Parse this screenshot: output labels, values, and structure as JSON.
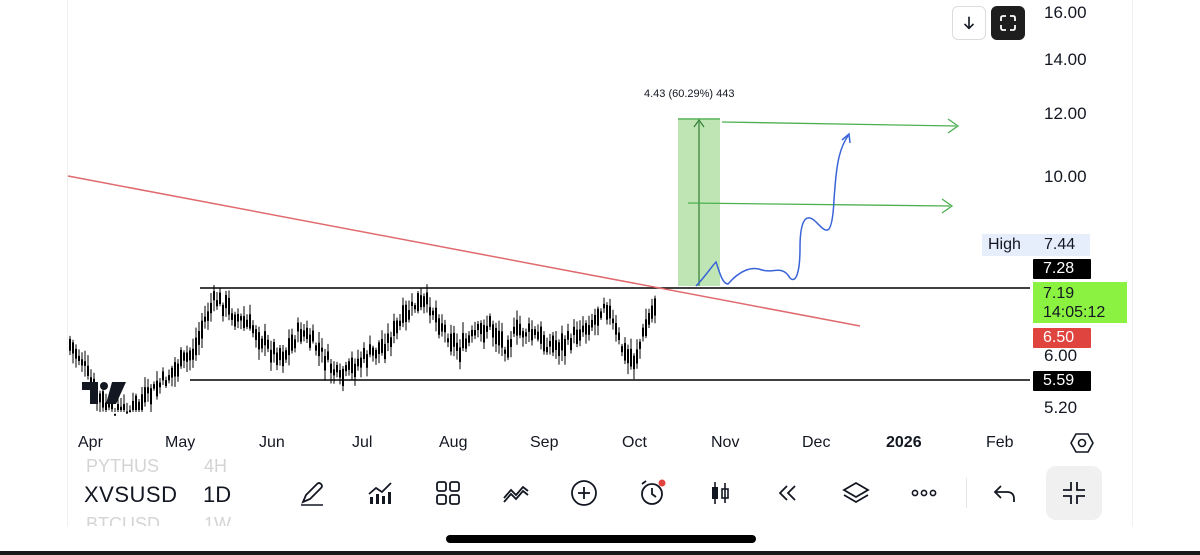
{
  "chart": {
    "symbol": "XVSUSD",
    "interval": "1D",
    "ghost_symbols": [
      "PYTHUS",
      "BTCUSD"
    ],
    "ghost_intervals": [
      "4H",
      "1W"
    ],
    "price_axis": [
      "16.00",
      "14.00",
      "12.00",
      "10.00",
      "6.00",
      "5.20"
    ],
    "x_axis": [
      "Apr",
      "May",
      "Jun",
      "Jul",
      "Aug",
      "Sep",
      "Oct",
      "Nov",
      "Dec",
      "2026",
      "Feb"
    ],
    "high_label": "High",
    "high_value": "7.44",
    "resistance_value": "7.28",
    "last_price": "7.19",
    "countdown": "14:05:12",
    "red_level": "6.50",
    "support_value": "5.59",
    "measure_label": "4.43 (60.29%) 443",
    "colors": {
      "candle": "#000000",
      "trendline": "#e06a6e",
      "projection": "#4caf50",
      "measure_fill": "#b5e0a8",
      "path": "#3a64d8",
      "last_price_bg": "#8bf242"
    }
  },
  "chart_data": {
    "type": "candlestick",
    "x_range": [
      "Apr",
      "Feb"
    ],
    "y_range": [
      5.2,
      16.0
    ],
    "levels": {
      "resistance": 7.28,
      "support": 5.59,
      "high": 7.44,
      "last": 7.19
    },
    "measure": {
      "change": 4.43,
      "percent": 60.29,
      "bars": 443
    }
  },
  "toolbar": {
    "icons": [
      "draw-pen-icon",
      "indicators-icon",
      "layouts-icon",
      "compare-icon",
      "add-icon",
      "alert-icon",
      "bar-style-icon",
      "replay-icon",
      "layers-icon",
      "more-icon",
      "undo-icon",
      "collapse-icon"
    ]
  }
}
